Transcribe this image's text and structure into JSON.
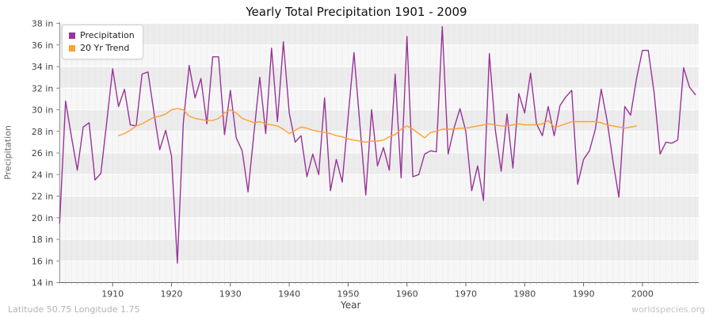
{
  "title": "Yearly Total Precipitation 1901 - 2009",
  "legend": {
    "precipitation_label": "Precipitation",
    "trend_label": "20 Yr Trend"
  },
  "axes": {
    "x_label": "Year",
    "y_label": "Precipitation",
    "y_tick_labels": [
      "38 in",
      "36 in",
      "34 in",
      "32 in",
      "30 in",
      "28 in",
      "26 in",
      "24 in",
      "22 in",
      "20 in",
      "18 in",
      "16 in",
      "14 in"
    ],
    "x_tick_labels": [
      "1910",
      "1920",
      "1930",
      "1940",
      "1950",
      "1960",
      "1970",
      "1980",
      "1990",
      "2000"
    ]
  },
  "footer": {
    "left": "Latitude 50.75 Longitude 1.75",
    "right": "worldspecies.org"
  },
  "colors": {
    "precipitation": "#993399",
    "trend": "#ffa030",
    "band_dark": "#ececec",
    "band_light": "#f7f7f7",
    "grid_v": "#d9d9d9",
    "grid_h": "#ffffff",
    "spine": "#8a8a8a",
    "tick_text": "#444444"
  },
  "chart_data": {
    "type": "line",
    "xlabel": "Year",
    "ylabel": "Precipitation",
    "ylim": [
      14,
      38
    ],
    "xlim": [
      1900.8,
      2009.6
    ],
    "y_tick_step": 2,
    "x_tick_start": 1910,
    "x_tick_step": 10,
    "grid": "horizontal-bands with dashed yearly vertical lines",
    "legend_position": "top-left",
    "series": [
      {
        "name": "Precipitation",
        "color": "#993399",
        "x_start": 1901,
        "values": [
          19.5,
          30.8,
          27.5,
          24.4,
          28.4,
          28.8,
          23.5,
          24.1,
          28.9,
          33.8,
          30.3,
          31.9,
          28.6,
          28.5,
          33.3,
          33.5,
          29.8,
          26.3,
          28.1,
          25.7,
          15.8,
          28.8,
          34.1,
          31.1,
          32.9,
          28.7,
          34.9,
          34.9,
          27.7,
          31.8,
          27.4,
          26.2,
          22.4,
          27.8,
          33.0,
          27.8,
          35.7,
          28.9,
          36.3,
          29.7,
          27.0,
          27.6,
          23.8,
          25.9,
          24.0,
          31.1,
          22.5,
          25.4,
          23.3,
          29.3,
          35.3,
          28.6,
          22.1,
          30.0,
          24.8,
          26.5,
          24.4,
          33.3,
          23.7,
          36.8,
          23.8,
          24.0,
          25.9,
          26.2,
          26.1,
          37.7,
          25.9,
          28.3,
          30.1,
          28.0,
          22.5,
          24.8,
          21.6,
          35.2,
          28.2,
          24.3,
          29.6,
          24.6,
          31.5,
          29.7,
          33.4,
          28.7,
          27.6,
          30.3,
          27.6,
          30.4,
          31.2,
          31.8,
          23.1,
          25.4,
          26.2,
          28.2,
          31.9,
          29.0,
          25.2,
          21.9,
          30.3,
          29.5,
          32.9,
          35.5,
          35.5,
          31.5,
          25.9,
          27.0,
          26.9,
          27.2,
          33.9,
          32.1,
          31.4
        ]
      },
      {
        "name": "20 Yr Trend",
        "color": "#ffa030",
        "x_start": 1911,
        "values": [
          27.6,
          27.8,
          28.1,
          28.5,
          28.7,
          29.0,
          29.3,
          29.4,
          29.6,
          30.0,
          30.1,
          30.0,
          29.4,
          29.2,
          29.1,
          29.0,
          29.0,
          29.2,
          29.7,
          30.0,
          29.7,
          29.2,
          29.0,
          28.8,
          28.9,
          28.7,
          28.6,
          28.5,
          28.2,
          27.8,
          28.1,
          28.4,
          28.3,
          28.1,
          28.0,
          27.9,
          27.8,
          27.6,
          27.5,
          27.3,
          27.2,
          27.1,
          27.0,
          27.1,
          27.1,
          27.2,
          27.5,
          27.7,
          28.2,
          28.5,
          28.2,
          27.8,
          27.4,
          27.9,
          28.0,
          28.2,
          28.2,
          28.2,
          28.3,
          28.3,
          28.4,
          28.5,
          28.6,
          28.7,
          28.6,
          28.5,
          28.5,
          28.6,
          28.7,
          28.6,
          28.6,
          28.6,
          28.7,
          29.0,
          28.4,
          28.5,
          28.7,
          28.9,
          28.9,
          28.9,
          28.9,
          28.9,
          28.8,
          28.6,
          28.5,
          28.4,
          28.3,
          28.4,
          28.5
        ]
      }
    ]
  }
}
